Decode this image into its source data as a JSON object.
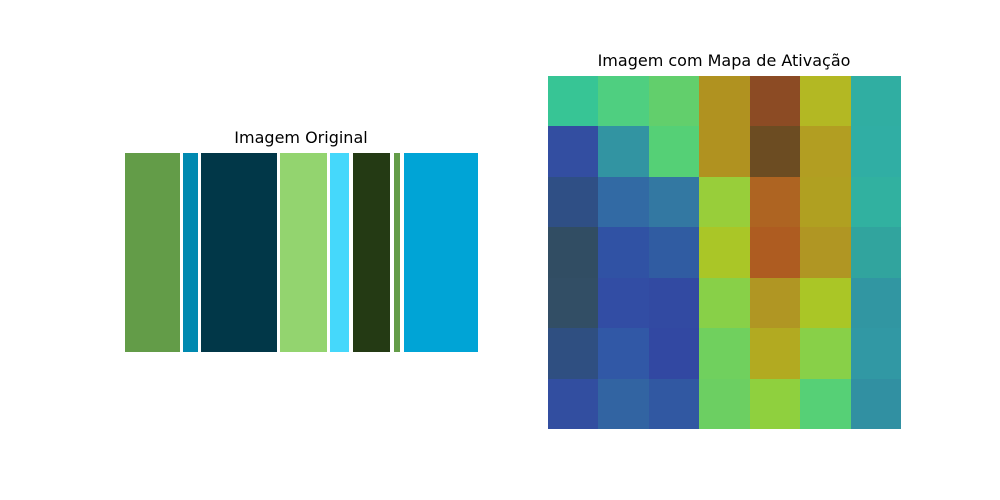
{
  "left_panel": {
    "title": "Imagem Original",
    "stripes": [
      {
        "color": "#639c48",
        "start": 0.0,
        "end": 0.156
      },
      {
        "color": "#0089b0",
        "start": 0.164,
        "end": 0.207
      },
      {
        "color": "#013748",
        "start": 0.215,
        "end": 0.431
      },
      {
        "color": "#93d46f",
        "start": 0.439,
        "end": 0.572
      },
      {
        "color": "#45d8fb",
        "start": 0.581,
        "end": 0.635
      },
      {
        "color": "#243a14",
        "start": 0.646,
        "end": 0.751
      },
      {
        "color": "#639c48",
        "start": 0.762,
        "end": 0.779
      },
      {
        "color": "#00a4d6",
        "start": 0.79,
        "end": 1.0
      }
    ]
  },
  "right_panel": {
    "title": "Imagem com Mapa de Ativação",
    "grid": [
      [
        "#37c595",
        "#4fcf80",
        "#62cf6c",
        "#b09220",
        "#8c4b24",
        "#b3b823",
        "#30aea2"
      ],
      [
        "#334ea1",
        "#3294a2",
        "#55d076",
        "#b09220",
        "#6c4c22",
        "#b29e22",
        "#30aea4"
      ],
      [
        "#2f4f85",
        "#326aa4",
        "#3378a2",
        "#98ce3a",
        "#ae6422",
        "#b0a021",
        "#31b1a0"
      ],
      [
        "#314d63",
        "#3052a4",
        "#305ca2",
        "#aac627",
        "#ae5c21",
        "#b09623",
        "#31a49e"
      ],
      [
        "#324e65",
        "#324da4",
        "#324aa2",
        "#88d048",
        "#b09623",
        "#aac626",
        "#3196a2"
      ],
      [
        "#2f4f81",
        "#3158a6",
        "#3248a2",
        "#70d05e",
        "#b2aa21",
        "#88d048",
        "#3198a4"
      ],
      [
        "#324ea0",
        "#3264a2",
        "#3158a2",
        "#6ccf62",
        "#8fd03e",
        "#56d076",
        "#3190a2"
      ]
    ]
  }
}
